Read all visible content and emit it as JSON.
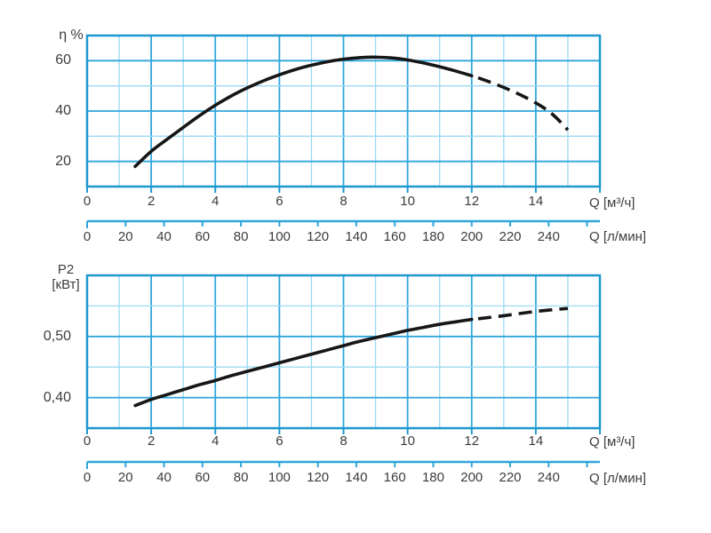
{
  "colors": {
    "background": "#ffffff",
    "grid_major": "#2fa6dc",
    "grid_minor": "#9cd9f2",
    "plot_border": "#1e98d0",
    "axis_line": "#2fa6dc",
    "curve": "#161616",
    "text": "#3d3d3d"
  },
  "chart_data": [
    {
      "type": "line",
      "title": "Pump efficiency curve",
      "corner_label": "η %",
      "x_axis_label": "Q [м³/ч]",
      "x_axis2_label": "Q [л/мин]",
      "xlim": [
        0,
        16
      ],
      "ylim": [
        10,
        70
      ],
      "grid_x_step": 1,
      "grid_y_step": 10,
      "grid": true,
      "x_ticks": [
        {
          "value": 0,
          "label": "0"
        },
        {
          "value": 2,
          "label": "2"
        },
        {
          "value": 4,
          "label": "4"
        },
        {
          "value": 6,
          "label": "6"
        },
        {
          "value": 8,
          "label": "8"
        },
        {
          "value": 10,
          "label": "10"
        },
        {
          "value": 12,
          "label": "12"
        },
        {
          "value": 14,
          "label": "14"
        },
        {
          "value": 16,
          "label": ""
        }
      ],
      "x2_ticks": [
        {
          "value": 0,
          "label": "0"
        },
        {
          "value": 20,
          "label": "20"
        },
        {
          "value": 40,
          "label": "40"
        },
        {
          "value": 60,
          "label": "60"
        },
        {
          "value": 80,
          "label": "80"
        },
        {
          "value": 100,
          "label": "100"
        },
        {
          "value": 120,
          "label": "120"
        },
        {
          "value": 140,
          "label": "140"
        },
        {
          "value": 160,
          "label": "160"
        },
        {
          "value": 180,
          "label": "180"
        },
        {
          "value": 200,
          "label": "200"
        },
        {
          "value": 220,
          "label": "220"
        },
        {
          "value": 240,
          "label": "240"
        },
        {
          "value": 260,
          "label": ""
        }
      ],
      "x2_to_x_factor": 0.06,
      "y_ticks": [
        {
          "value": 20,
          "label": "20"
        },
        {
          "value": 40,
          "label": "40"
        },
        {
          "value": 60,
          "label": "60"
        }
      ],
      "series": [
        {
          "name": "efficiency-curve-solid",
          "style": "solid",
          "points": [
            [
              1.5,
              18
            ],
            [
              2,
              24
            ],
            [
              2.5,
              28.8
            ],
            [
              3,
              33.5
            ],
            [
              3.5,
              38.1
            ],
            [
              4,
              42.3
            ],
            [
              4.5,
              46
            ],
            [
              5,
              49.2
            ],
            [
              5.5,
              52
            ],
            [
              6,
              54.4
            ],
            [
              6.5,
              56.5
            ],
            [
              7,
              58.2
            ],
            [
              7.5,
              59.6
            ],
            [
              8,
              60.6
            ],
            [
              8.5,
              61.2
            ],
            [
              9,
              61.4
            ],
            [
              9.5,
              61.1
            ],
            [
              10,
              60.3
            ],
            [
              10.5,
              59.1
            ],
            [
              11,
              57.6
            ],
            [
              11.5,
              55.9
            ],
            [
              12,
              54
            ]
          ]
        },
        {
          "name": "efficiency-curve-extrapolated",
          "style": "dashed",
          "points": [
            [
              12.2,
              53.2
            ],
            [
              12.7,
              50.9
            ],
            [
              13.2,
              48.3
            ],
            [
              13.7,
              45.3
            ],
            [
              14.2,
              41.7
            ],
            [
              14.6,
              37.8
            ],
            [
              15,
              32.5
            ]
          ]
        }
      ]
    },
    {
      "type": "line",
      "title": "Pump shaft power curve",
      "corner_label_line1": "P2",
      "corner_label_line2": "[кВт]",
      "x_axis_label": "Q [м³/ч]",
      "x_axis2_label": "Q [л/мин]",
      "xlim": [
        0,
        16
      ],
      "ylim": [
        0.35,
        0.6
      ],
      "grid_x_step": 1,
      "grid_y_step": 0.05,
      "grid": true,
      "x_ticks": [
        {
          "value": 0,
          "label": "0"
        },
        {
          "value": 2,
          "label": "2"
        },
        {
          "value": 4,
          "label": "4"
        },
        {
          "value": 6,
          "label": "6"
        },
        {
          "value": 8,
          "label": "8"
        },
        {
          "value": 10,
          "label": "10"
        },
        {
          "value": 12,
          "label": "12"
        },
        {
          "value": 14,
          "label": "14"
        },
        {
          "value": 16,
          "label": ""
        }
      ],
      "x2_ticks": [
        {
          "value": 0,
          "label": "0"
        },
        {
          "value": 20,
          "label": "20"
        },
        {
          "value": 40,
          "label": "40"
        },
        {
          "value": 60,
          "label": "60"
        },
        {
          "value": 80,
          "label": "80"
        },
        {
          "value": 100,
          "label": "100"
        },
        {
          "value": 120,
          "label": "120"
        },
        {
          "value": 140,
          "label": "140"
        },
        {
          "value": 160,
          "label": "160"
        },
        {
          "value": 180,
          "label": "180"
        },
        {
          "value": 200,
          "label": "200"
        },
        {
          "value": 220,
          "label": "220"
        },
        {
          "value": 240,
          "label": "240"
        },
        {
          "value": 260,
          "label": ""
        }
      ],
      "x2_to_x_factor": 0.06,
      "y_ticks": [
        {
          "value": 0.4,
          "label": "0,40"
        },
        {
          "value": 0.5,
          "label": "0,50"
        }
      ],
      "series": [
        {
          "name": "power-curve-solid",
          "style": "solid",
          "points": [
            [
              1.5,
              0.387
            ],
            [
              2,
              0.397
            ],
            [
              2.5,
              0.405
            ],
            [
              3,
              0.413
            ],
            [
              3.5,
              0.421
            ],
            [
              4,
              0.428
            ],
            [
              4.5,
              0.436
            ],
            [
              5,
              0.443
            ],
            [
              5.5,
              0.45
            ],
            [
              6,
              0.457
            ],
            [
              6.5,
              0.464
            ],
            [
              7,
              0.471
            ],
            [
              7.5,
              0.478
            ],
            [
              8,
              0.485
            ],
            [
              8.5,
              0.492
            ],
            [
              9,
              0.498
            ],
            [
              9.5,
              0.504
            ],
            [
              10,
              0.51
            ],
            [
              10.5,
              0.515
            ],
            [
              11,
              0.52
            ],
            [
              11.5,
              0.524
            ],
            [
              12,
              0.528
            ]
          ],
          "unit": "кВт"
        },
        {
          "name": "power-curve-extrapolated",
          "style": "dashed",
          "points": [
            [
              12.2,
              0.529
            ],
            [
              13,
              0.534
            ],
            [
              14,
              0.541
            ],
            [
              15,
              0.546
            ]
          ],
          "unit": "кВт"
        }
      ]
    }
  ]
}
